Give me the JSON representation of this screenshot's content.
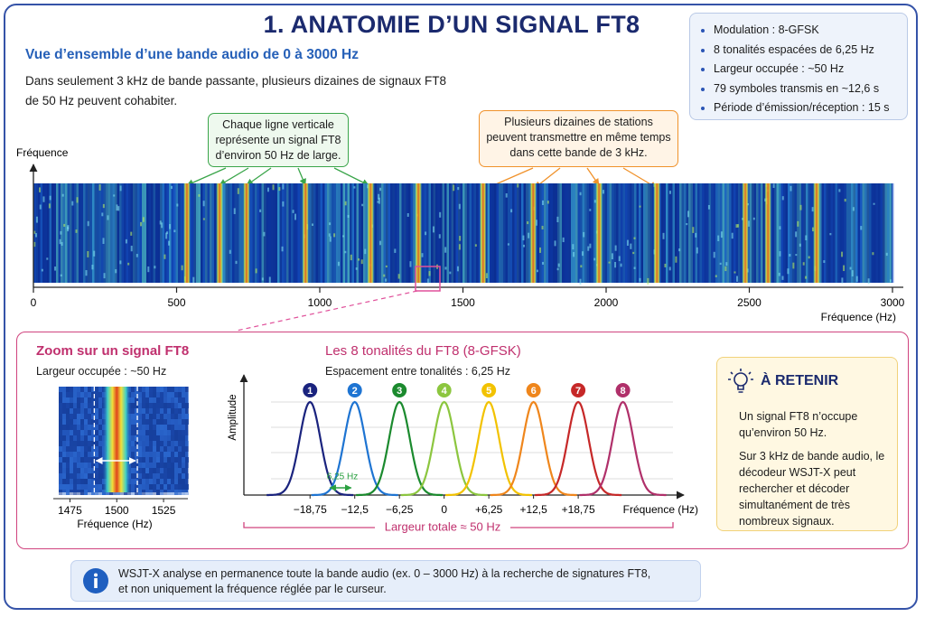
{
  "title": "1. ANATOMIE D’UN SIGNAL FT8",
  "overview": {
    "heading": "Vue d’ensemble d’une bande audio de 0 à 3000 Hz",
    "text": [
      "Dans seulement 3 kHz de bande passante, plusieurs dizaines de signaux FT8",
      "de 50 Hz peuvent cohabiter."
    ]
  },
  "specs": [
    "Modulation : 8-GFSK",
    "8 tonalités espacées de 6,25 Hz",
    "Largeur occupée : ~50 Hz",
    "79 symboles transmis en ~12,6 s",
    "Période d’émission/réception : 15 s"
  ],
  "callouts": {
    "green": [
      "Chaque ligne verticale",
      "représente un signal FT8",
      "d’environ 50 Hz de large."
    ],
    "orange": [
      "Plusieurs dizaines de stations",
      "peuvent transmettre en même temps",
      "dans cette bande de 3 kHz."
    ]
  },
  "waterfall": {
    "y_label": "Fréquence",
    "x_label": "Fréquence (Hz)",
    "xlim": [
      0,
      3000
    ],
    "xticks": [
      0,
      500,
      1000,
      1500,
      2000,
      2500,
      3000
    ],
    "signals": [
      536,
      650,
      744,
      950,
      1177,
      1344,
      1570,
      1745,
      1975,
      2177,
      2486,
      2565,
      2735
    ]
  },
  "zoom": {
    "heading": "Zoom sur un signal FT8",
    "subtitle": "Largeur occupée : ~50 Hz",
    "x_label": "Fréquence (Hz)",
    "xlim": [
      1469,
      1538
    ],
    "xticks": [
      1475,
      1500,
      1525
    ],
    "signal": 1500,
    "band": [
      1488,
      1511
    ]
  },
  "tones": {
    "heading": "Les 8 tonalités du FT8 (8-GFSK)",
    "subtitle": "Espacement entre tonalités : 6,25 Hz",
    "y_label": "Amplitude",
    "x_label": "Fréquence (Hz)",
    "xlim": [
      -28,
      32
    ],
    "xticks": [
      {
        "value": -18.75,
        "label": "−18,75"
      },
      {
        "value": -12.5,
        "label": "−12,5"
      },
      {
        "value": -6.25,
        "label": "−6,25"
      },
      0,
      {
        "value": 6.25,
        "label": "+6,25"
      },
      {
        "value": 12.5,
        "label": "+12,5"
      },
      {
        "value": 18.75,
        "label": "+18,75"
      }
    ],
    "spacing": {
      "value": 6.25,
      "label": "6,25 Hz"
    },
    "total": "Largeur totale ≈ 50 Hz",
    "tones": [
      {
        "label": "1",
        "color": "#1a237e",
        "center": -18.75
      },
      {
        "label": "2",
        "color": "#1e74d2",
        "center": -12.5
      },
      {
        "label": "3",
        "color": "#1b8a2e",
        "center": -6.25
      },
      {
        "label": "4",
        "color": "#8cc63f",
        "center": 0
      },
      {
        "label": "5",
        "color": "#f2c200",
        "center": 6.25
      },
      {
        "label": "6",
        "color": "#ef861c",
        "center": 12.5
      },
      {
        "label": "7",
        "color": "#c62828",
        "center": 18.75
      },
      {
        "label": "8",
        "color": "#b0306a",
        "center": 25
      }
    ]
  },
  "retain": {
    "heading": "À RETENIR",
    "paragraphs": [
      "Un signal FT8 n’occupe qu’environ 50 Hz.",
      "Sur 3 kHz de bande audio, le décodeur WSJT-X peut rechercher et décoder simultanément de très nombreux signaux."
    ]
  },
  "note": [
    "WSJT-X analyse en permanence toute la bande audio (ex. 0 – 3000 Hz) à la recherche de signatures FT8,",
    "et non uniquement la fréquence réglée par le curseur."
  ]
}
